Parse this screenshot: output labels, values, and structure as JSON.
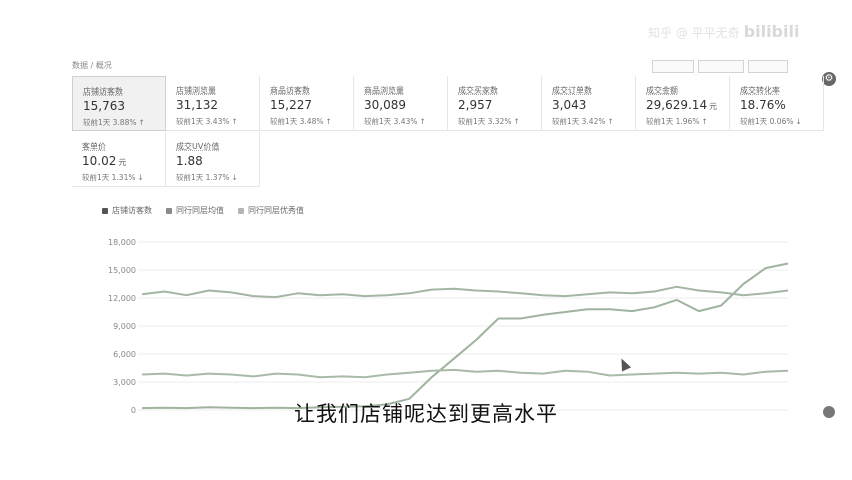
{
  "watermark": {
    "text": "知乎 @ 平平无奇",
    "brand": "bilibili"
  },
  "topbar": {
    "crumb": "数据 / 概况"
  },
  "metrics": [
    {
      "label": "店铺访客数",
      "value": "15,763",
      "unit": "",
      "cmp": "较前1天 3.88%",
      "dir": "↑",
      "active": true
    },
    {
      "label": "店铺浏览量",
      "value": "31,132",
      "unit": "",
      "cmp": "较前1天 3.43%",
      "dir": "↑"
    },
    {
      "label": "商品访客数",
      "value": "15,227",
      "unit": "",
      "cmp": "较前1天 3.48%",
      "dir": "↑"
    },
    {
      "label": "商品浏览量",
      "value": "30,089",
      "unit": "",
      "cmp": "较前1天 3.43%",
      "dir": "↑"
    },
    {
      "label": "成交买家数",
      "value": "2,957",
      "unit": "",
      "cmp": "较前1天 3.32%",
      "dir": "↑"
    },
    {
      "label": "成交订单数",
      "value": "3,043",
      "unit": "",
      "cmp": "较前1天 3.42%",
      "dir": "↑"
    },
    {
      "label": "成交金额",
      "value": "29,629.14",
      "unit": "元",
      "cmp": "较前1天 1.96%",
      "dir": "↑"
    },
    {
      "label": "成交转化率",
      "value": "18.76%",
      "unit": "",
      "cmp": "较前1天 0.06%",
      "dir": "↓"
    },
    {
      "label": "客单价",
      "value": "10.02",
      "unit": "元",
      "cmp": "较前1天 1.31%",
      "dir": "↓"
    },
    {
      "label": "成交UV价值",
      "value": "1.88",
      "unit": "",
      "cmp": "较前1天 1.37%",
      "dir": "↓"
    }
  ],
  "legend": [
    {
      "name": "店铺访客数",
      "color": "#555555"
    },
    {
      "name": "同行同层均值",
      "color": "#8a8a8a"
    },
    {
      "name": "同行同层优秀值",
      "color": "#b5b5b5"
    }
  ],
  "chart_data": {
    "type": "line",
    "y_ticks": [
      "18,000",
      "15,000",
      "12,000",
      "9,000",
      "6,000",
      "3,000",
      "0"
    ],
    "ylim": [
      0,
      18000
    ],
    "grid": true,
    "series": [
      {
        "name": "店铺访客数",
        "color": "#9fb39f",
        "values": [
          200,
          250,
          200,
          300,
          250,
          200,
          250,
          200,
          300,
          350,
          400,
          600,
          1200,
          3500,
          5500,
          7500,
          9800,
          9800,
          10200,
          10500,
          10800,
          10800,
          10600,
          11000,
          11800,
          10600,
          11200,
          13500,
          15200,
          15700
        ]
      },
      {
        "name": "同行同层均值",
        "color": "#a8bba8",
        "values": [
          3800,
          3900,
          3700,
          3900,
          3800,
          3600,
          3900,
          3800,
          3500,
          3600,
          3500,
          3800,
          4000,
          4200,
          4300,
          4100,
          4200,
          4000,
          3900,
          4200,
          4100,
          3700,
          3800,
          3900,
          4000,
          3900,
          4000,
          3800,
          4100,
          4200
        ]
      },
      {
        "name": "同行同层优秀值",
        "color": "#a3b6a3",
        "values": [
          12400,
          12700,
          12300,
          12800,
          12600,
          12200,
          12100,
          12500,
          12300,
          12400,
          12200,
          12300,
          12500,
          12900,
          13000,
          12800,
          12700,
          12500,
          12300,
          12200,
          12400,
          12600,
          12500,
          12700,
          13200,
          12800,
          12600,
          12300,
          12500,
          12800
        ]
      }
    ]
  },
  "subtitle": "让我们店铺呢达到更高水平"
}
